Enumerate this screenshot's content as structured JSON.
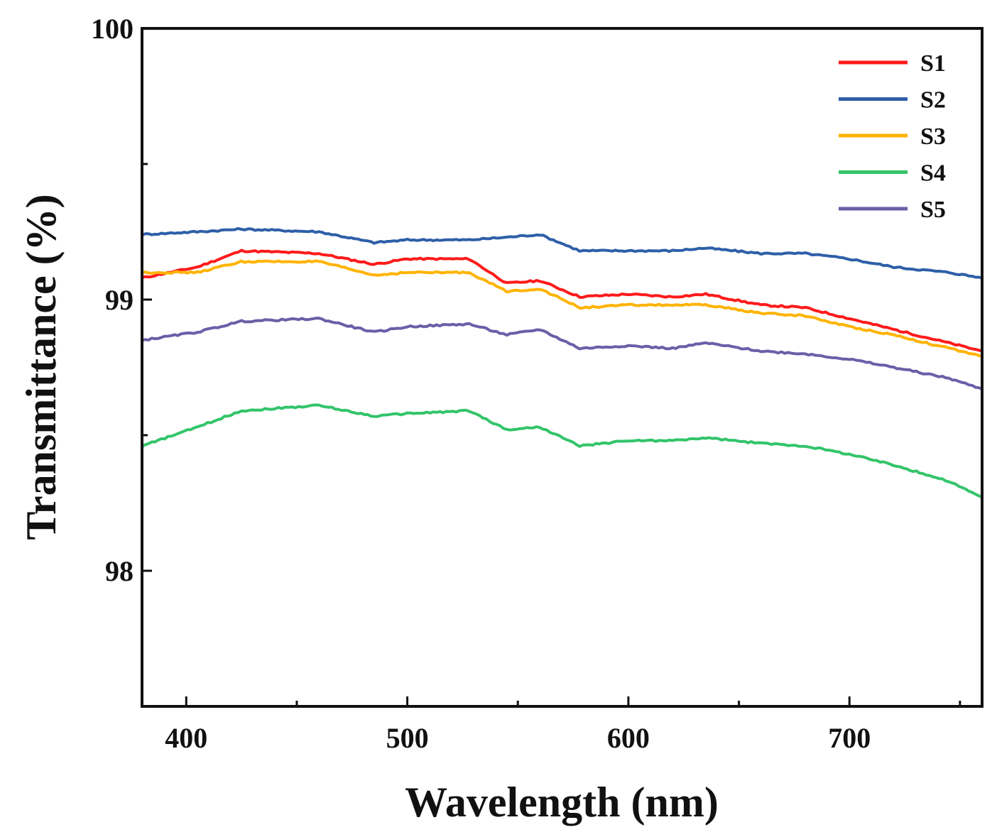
{
  "chart_data": {
    "type": "line",
    "title": "",
    "xlabel": "Wavelength (nm)",
    "ylabel": "Transmittance (%)",
    "xlim": [
      380,
      760
    ],
    "ylim": [
      97.5,
      100
    ],
    "xticks": [
      400,
      500,
      600,
      700
    ],
    "xtick_labels": [
      "400",
      "500",
      "600",
      "700"
    ],
    "yticks": [
      98,
      99,
      100
    ],
    "ytick_labels": [
      "98",
      "99",
      "100"
    ],
    "legend_position": "top-right",
    "x": [
      380,
      405,
      425,
      460,
      485,
      500,
      528,
      545,
      560,
      578,
      600,
      620,
      635,
      660,
      680,
      700,
      720,
      745,
      760
    ],
    "series": [
      {
        "name": "S1",
        "color": "#ff1a1a",
        "values": [
          99.08,
          99.12,
          99.18,
          99.17,
          99.13,
          99.15,
          99.15,
          99.06,
          99.07,
          99.01,
          99.02,
          99.01,
          99.02,
          98.98,
          98.97,
          98.93,
          98.89,
          98.84,
          98.81
        ]
      },
      {
        "name": "S2",
        "color": "#2e5fa8",
        "values": [
          99.24,
          99.25,
          99.26,
          99.25,
          99.21,
          99.22,
          99.22,
          99.23,
          99.24,
          99.18,
          99.18,
          99.18,
          99.19,
          99.17,
          99.17,
          99.15,
          99.12,
          99.1,
          99.08
        ]
      },
      {
        "name": "S3",
        "color": "#ffb300",
        "values": [
          99.1,
          99.1,
          99.14,
          99.14,
          99.09,
          99.1,
          99.1,
          99.03,
          99.04,
          98.97,
          98.98,
          98.98,
          98.98,
          98.95,
          98.94,
          98.9,
          98.87,
          98.82,
          98.79
        ]
      },
      {
        "name": "S4",
        "color": "#33c46a",
        "values": [
          98.46,
          98.53,
          98.59,
          98.61,
          98.57,
          98.58,
          98.59,
          98.52,
          98.53,
          98.46,
          98.48,
          98.48,
          98.49,
          98.47,
          98.46,
          98.43,
          98.39,
          98.33,
          98.27
        ]
      },
      {
        "name": "S5",
        "color": "#6a5fa8",
        "values": [
          98.85,
          98.88,
          98.92,
          98.93,
          98.88,
          98.9,
          98.91,
          98.87,
          98.89,
          98.82,
          98.83,
          98.82,
          98.84,
          98.81,
          98.8,
          98.78,
          98.75,
          98.71,
          98.67
        ]
      }
    ]
  }
}
